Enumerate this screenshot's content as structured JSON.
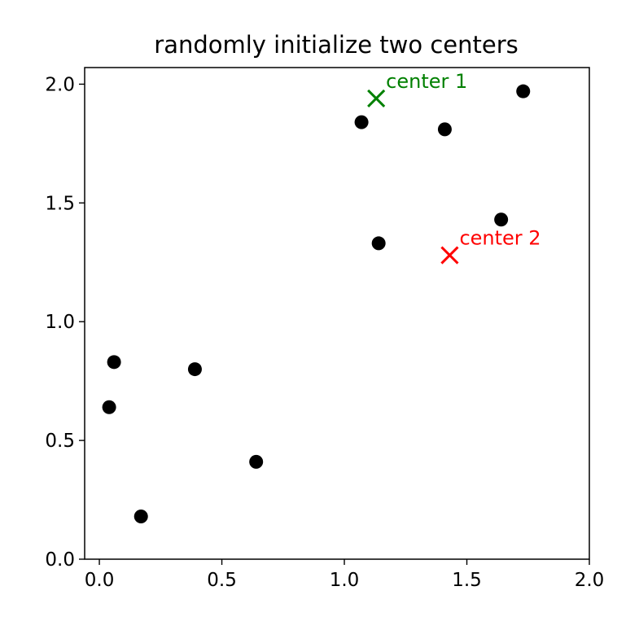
{
  "chart_data": {
    "type": "scatter",
    "title": "randomly initialize two centers",
    "xlabel": "",
    "ylabel": "",
    "xlim": [
      -0.06,
      2.0
    ],
    "ylim": [
      0.0,
      2.07
    ],
    "xticks": [
      "0.0",
      "0.5",
      "1.0",
      "1.5",
      "2.0"
    ],
    "yticks": [
      "0.0",
      "0.5",
      "1.0",
      "1.5",
      "2.0"
    ],
    "grid": false,
    "points": {
      "color": "#000000",
      "x": [
        0.04,
        0.06,
        0.39,
        0.17,
        0.64,
        1.14,
        1.07,
        1.41,
        1.64,
        1.73
      ],
      "y": [
        0.64,
        0.83,
        0.8,
        0.18,
        0.41,
        1.33,
        1.84,
        1.81,
        1.43,
        1.97
      ]
    },
    "centers": [
      {
        "label": "center 1",
        "x": 1.13,
        "y": 1.94,
        "color": "#008000"
      },
      {
        "label": "center 2",
        "x": 1.43,
        "y": 1.28,
        "color": "#ff0000"
      }
    ]
  }
}
